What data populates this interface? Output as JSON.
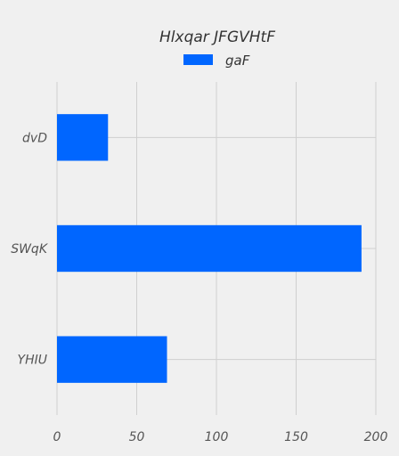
{
  "chart_data": {
    "type": "bar",
    "orientation": "horizontal",
    "title": "Hlxqar JFGVHtF",
    "xlabel": "",
    "ylabel": "",
    "categories": [
      "dvD",
      "SWqK",
      "YHIU"
    ],
    "series": [
      {
        "name": "gaF",
        "values": [
          32,
          191,
          69
        ],
        "color": "#0066ff"
      }
    ],
    "xlim": [
      0,
      200
    ],
    "xticks": [
      0,
      50,
      100,
      150,
      200
    ],
    "grid": true,
    "legend_position": "top-center"
  }
}
